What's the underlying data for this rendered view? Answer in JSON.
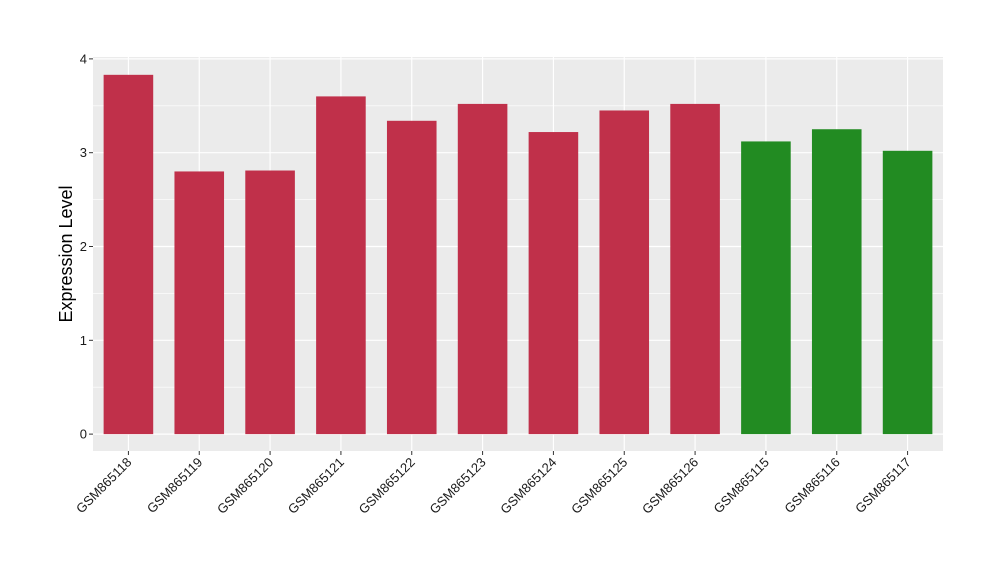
{
  "chart_data": {
    "type": "bar",
    "title": "",
    "xlabel": "",
    "ylabel": "Expression Level",
    "ylim": [
      -0.18,
      4.02
    ],
    "yticks": [
      0,
      1,
      2,
      3,
      4
    ],
    "ytick_labels": [
      "0",
      "1",
      "2",
      "3",
      "4"
    ],
    "grid": true,
    "legend": "none",
    "categories": [
      "GSM865118",
      "GSM865119",
      "GSM865120",
      "GSM865121",
      "GSM865122",
      "GSM865123",
      "GSM865124",
      "GSM865125",
      "GSM865126",
      "GSM865115",
      "GSM865116",
      "GSM865117"
    ],
    "values": [
      3.83,
      2.8,
      2.81,
      3.6,
      3.34,
      3.52,
      3.22,
      3.45,
      3.52,
      3.12,
      3.25,
      3.02
    ],
    "bar_colors": [
      "#c0304a",
      "#c0304a",
      "#c0304a",
      "#c0304a",
      "#c0304a",
      "#c0304a",
      "#c0304a",
      "#c0304a",
      "#c0304a",
      "#228b22",
      "#228b22",
      "#228b22"
    ],
    "panel_background": "#ebebeb",
    "grid_color": "#ffffff"
  }
}
